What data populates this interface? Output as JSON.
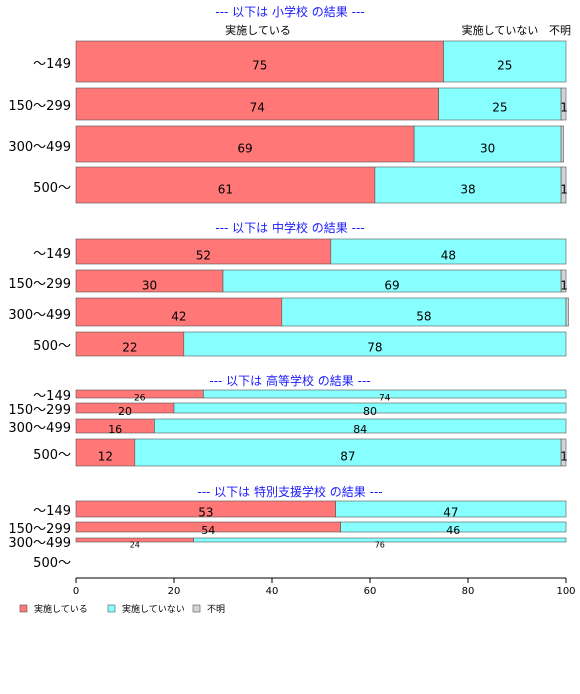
{
  "chart_data": {
    "type": "bar",
    "orientation": "horizontal",
    "stacked": true,
    "column_headers": [
      "実施している",
      "実施していない",
      "不明"
    ],
    "xlim": [
      0,
      100
    ],
    "xticks": [
      0,
      20,
      40,
      60,
      80,
      100
    ],
    "legend_position": "bottom-left",
    "series": [
      {
        "name": "実施している",
        "color": "#ff7777"
      },
      {
        "name": "実施していない",
        "color": "#88ffff"
      },
      {
        "name": "不明",
        "color": "#d3d3d3"
      }
    ],
    "panels": [
      {
        "title": "--- 以下は 小学校 の結果 ---",
        "rows": [
          {
            "category": "～149",
            "values": [
              75,
              25,
              0
            ],
            "labels": [
              "75",
              "25",
              ""
            ]
          },
          {
            "category": "150～299",
            "values": [
              74,
              25,
              1
            ],
            "labels": [
              "74",
              "25",
              "1"
            ]
          },
          {
            "category": "300～499",
            "values": [
              69,
              30,
              0.5
            ],
            "labels": [
              "69",
              "30",
              ""
            ]
          },
          {
            "category": "500～",
            "values": [
              61,
              38,
              1
            ],
            "labels": [
              "61",
              "38",
              "1"
            ]
          }
        ]
      },
      {
        "title": "--- 以下は 中学校 の結果 ---",
        "rows": [
          {
            "category": "～149",
            "values": [
              52,
              48,
              0
            ],
            "labels": [
              "52",
              "48",
              ""
            ]
          },
          {
            "category": "150～299",
            "values": [
              30,
              69,
              1
            ],
            "labels": [
              "30",
              "69",
              "1"
            ]
          },
          {
            "category": "300～499",
            "values": [
              42,
              58,
              0.5
            ],
            "labels": [
              "42",
              "58",
              ""
            ]
          },
          {
            "category": "500～",
            "values": [
              22,
              78,
              0
            ],
            "labels": [
              "22",
              "78",
              ""
            ]
          }
        ]
      },
      {
        "title": "--- 以下は 高等学校 の結果 ---",
        "rows": [
          {
            "category": "～149",
            "values": [
              26,
              74,
              0
            ],
            "labels": [
              "26",
              "74",
              ""
            ]
          },
          {
            "category": "150～299",
            "values": [
              20,
              80,
              0
            ],
            "labels": [
              "20",
              "80",
              ""
            ]
          },
          {
            "category": "300～499",
            "values": [
              16,
              84,
              0
            ],
            "labels": [
              "16",
              "84",
              ""
            ]
          },
          {
            "category": "500～",
            "values": [
              12,
              87,
              1
            ],
            "labels": [
              "12",
              "87",
              "1"
            ]
          }
        ]
      },
      {
        "title": "--- 以下は 特別支援学校 の結果 ---",
        "rows": [
          {
            "category": "～149",
            "values": [
              53,
              47,
              0
            ],
            "labels": [
              "53",
              "47",
              ""
            ]
          },
          {
            "category": "150～299",
            "values": [
              54,
              46,
              0
            ],
            "labels": [
              "54",
              "46",
              ""
            ]
          },
          {
            "category": "300～499",
            "values": [
              24,
              76,
              0
            ],
            "labels": [
              "24",
              "76",
              ""
            ]
          },
          {
            "category": "500～",
            "values": [
              0,
              0,
              0
            ],
            "labels": [
              "",
              "",
              ""
            ]
          }
        ]
      }
    ]
  }
}
